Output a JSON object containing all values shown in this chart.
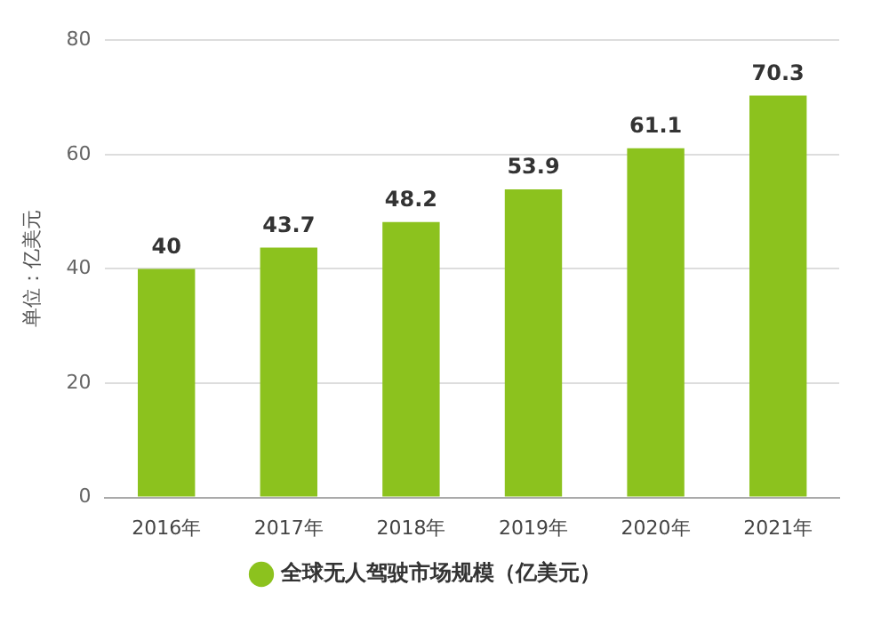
{
  "chart_data": {
    "type": "bar",
    "ylabel": "单位：亿美元",
    "categories": [
      "2016年",
      "2017年",
      "2018年",
      "2019年",
      "2020年",
      "2021年"
    ],
    "series": [
      {
        "name": "全球无人驾驶市场规模（亿美元）",
        "color": "#8cc21e",
        "values": [
          40,
          43.7,
          48.2,
          53.9,
          61.1,
          70.3
        ]
      }
    ],
    "ylim": [
      0,
      80
    ],
    "yticks": [
      0,
      20,
      40,
      60,
      80
    ],
    "grid": "y",
    "legend": "bottom",
    "data_labels": true
  }
}
